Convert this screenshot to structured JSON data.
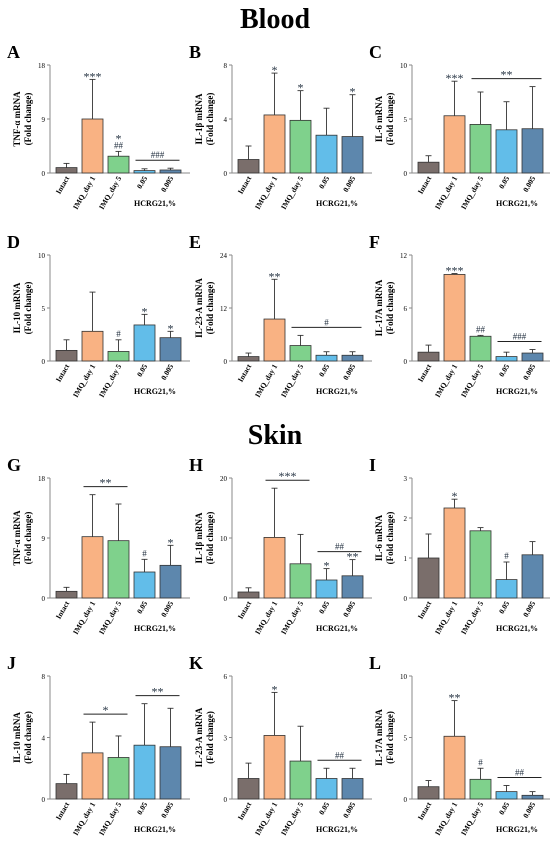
{
  "section_titles": [
    "Blood",
    "Skin"
  ],
  "chart_data": [
    {
      "panel": "A",
      "section": "Blood",
      "type": "bar",
      "ylabel": [
        "TNF-α mRNA",
        "(Fold change)"
      ],
      "categories": [
        "Intact",
        "IMQ_day 1",
        "IMQ_day 5",
        "0.05",
        "0.005"
      ],
      "group_label": "HCRG21,%",
      "yticks": [
        0,
        9,
        18
      ],
      "ylim": [
        0,
        18
      ],
      "values": [
        0.9,
        9.0,
        2.8,
        0.4,
        0.5
      ],
      "errors": [
        0.7,
        6.6,
        0.8,
        0.3,
        0.3
      ],
      "marks": [
        [],
        [
          "***"
        ],
        [
          "*",
          "##"
        ],
        [],
        []
      ],
      "brackets": [
        {
          "from": 3,
          "to": 4,
          "label": "###"
        }
      ]
    },
    {
      "panel": "B",
      "section": "Blood",
      "type": "bar",
      "ylabel": [
        "IL-1β mRNA",
        "(Fold change)"
      ],
      "categories": [
        "Intact",
        "IMQ_day 1",
        "IMQ_day 5",
        "0.05",
        "0.005"
      ],
      "group_label": "HCRG21,%",
      "yticks": [
        0,
        4,
        8
      ],
      "ylim": [
        0,
        8
      ],
      "values": [
        1.0,
        4.3,
        3.9,
        2.8,
        2.7
      ],
      "errors": [
        1.0,
        3.1,
        2.2,
        2.0,
        3.1
      ],
      "marks": [
        [],
        [
          "*"
        ],
        [
          "*"
        ],
        [],
        [
          "*"
        ]
      ],
      "brackets": []
    },
    {
      "panel": "C",
      "section": "Blood",
      "type": "bar",
      "ylabel": [
        "IL-6 mRNA",
        "(Fold change)"
      ],
      "categories": [
        "Intact",
        "IMQ_day 1",
        "IMQ_day 5",
        "0.05",
        "0.005"
      ],
      "group_label": "HCRG21,%",
      "yticks": [
        0,
        5,
        10
      ],
      "ylim": [
        0,
        10
      ],
      "values": [
        1.0,
        5.3,
        4.5,
        4.0,
        4.1
      ],
      "errors": [
        0.6,
        3.2,
        3.0,
        2.6,
        3.9
      ],
      "marks": [
        [],
        [
          "***"
        ],
        [],
        [],
        []
      ],
      "brackets": [
        {
          "from": 2,
          "to": 4,
          "label": "**"
        }
      ]
    },
    {
      "panel": "D",
      "section": "Blood",
      "type": "bar",
      "ylabel": [
        "IL-10 mRNA",
        "(Fold change)"
      ],
      "categories": [
        "Intact",
        "IMQ_day 1",
        "IMQ_day 5",
        "0.05",
        "0.005"
      ],
      "group_label": "HCRG21,%",
      "yticks": [
        0,
        5,
        10
      ],
      "ylim": [
        0,
        10
      ],
      "values": [
        1.0,
        2.8,
        0.9,
        3.4,
        2.2
      ],
      "errors": [
        1.0,
        3.7,
        1.1,
        1.0,
        0.6
      ],
      "marks": [
        [],
        [],
        [
          "#"
        ],
        [
          "*"
        ],
        [
          "*"
        ]
      ],
      "brackets": []
    },
    {
      "panel": "E",
      "section": "Blood",
      "type": "bar",
      "ylabel": [
        "IL-23-A mRNA",
        "(Fold change)"
      ],
      "categories": [
        "Intact",
        "IMQ_day 1",
        "IMQ_day 5",
        "0.05",
        "0.005"
      ],
      "group_label": "HCRG21,%",
      "yticks": [
        0,
        12,
        24
      ],
      "ylim": [
        0,
        24
      ],
      "values": [
        1.0,
        9.5,
        3.5,
        1.3,
        1.3
      ],
      "errors": [
        0.8,
        9.0,
        2.3,
        0.8,
        0.8
      ],
      "marks": [
        [],
        [
          "**"
        ],
        [],
        [],
        []
      ],
      "brackets": [
        {
          "from": 2,
          "to": 4,
          "label": "#"
        }
      ]
    },
    {
      "panel": "F",
      "section": "Blood",
      "type": "bar",
      "ylabel": [
        "IL-17A mRNA",
        "(Fold change)"
      ],
      "categories": [
        "Intact",
        "IMQ_day 1",
        "IMQ_day 5",
        "0.05",
        "0.005"
      ],
      "group_label": "HCRG21,%",
      "yticks": [
        0,
        6,
        12
      ],
      "ylim": [
        0,
        12
      ],
      "values": [
        1.0,
        9.8,
        2.8,
        0.5,
        0.9
      ],
      "errors": [
        0.8,
        0.1,
        0.1,
        0.5,
        0.4
      ],
      "marks": [
        [],
        [
          "***"
        ],
        [
          "##"
        ],
        [],
        []
      ],
      "brackets": [
        {
          "from": 3,
          "to": 4,
          "label": "###"
        }
      ]
    },
    {
      "panel": "G",
      "section": "Skin",
      "type": "bar",
      "ylabel": [
        "TNF-α mRNA",
        "(Fold change)"
      ],
      "categories": [
        "Intact",
        "IMQ_day 1",
        "IMQ_day 5",
        "0.05",
        "0.005"
      ],
      "group_label": "HCRG21,%",
      "yticks": [
        0,
        9,
        18
      ],
      "ylim": [
        0,
        18
      ],
      "values": [
        1.0,
        9.2,
        8.6,
        3.9,
        4.9
      ],
      "errors": [
        0.6,
        6.3,
        5.5,
        1.9,
        3.0
      ],
      "marks": [
        [],
        [],
        [],
        [
          "#"
        ],
        [
          "*"
        ]
      ],
      "brackets": [
        {
          "from": 1,
          "to": 2,
          "label": "**"
        }
      ]
    },
    {
      "panel": "H",
      "section": "Skin",
      "type": "bar",
      "ylabel": [
        "IL-1β mRNA",
        "(Fold change)"
      ],
      "categories": [
        "Intact",
        "IMQ_day 1",
        "IMQ_day 5",
        "0.05",
        "0.005"
      ],
      "group_label": "HCRG21,%",
      "yticks": [
        0,
        10,
        20
      ],
      "ylim": [
        0,
        20
      ],
      "values": [
        1.0,
        10.1,
        5.7,
        3.0,
        3.7
      ],
      "errors": [
        0.7,
        8.2,
        4.9,
        1.9,
        2.7
      ],
      "marks": [
        [],
        [],
        [],
        [
          "*"
        ],
        [
          "**"
        ]
      ],
      "brackets": [
        {
          "from": 1,
          "to": 2,
          "label": "***"
        },
        {
          "from": 3,
          "to": 4,
          "label": "##"
        }
      ]
    },
    {
      "panel": "I",
      "section": "Skin",
      "type": "bar",
      "ylabel": [
        "IL-6 mRNA",
        "(Fold change)"
      ],
      "categories": [
        "Intact",
        "IMQ_day 1",
        "IMQ_day 5",
        "0.05",
        "0.005"
      ],
      "group_label": "HCRG21,%",
      "yticks": [
        0,
        1,
        2,
        3
      ],
      "ylim": [
        0,
        3
      ],
      "values": [
        1.0,
        2.25,
        1.68,
        0.46,
        1.08
      ],
      "errors": [
        0.6,
        0.22,
        0.08,
        0.44,
        0.33
      ],
      "marks": [
        [],
        [
          "*"
        ],
        [],
        [
          "#"
        ],
        []
      ],
      "brackets": []
    },
    {
      "panel": "J",
      "section": "Skin",
      "type": "bar",
      "ylabel": [
        "IL-10 mRNA",
        "(Fold change)"
      ],
      "categories": [
        "Intact",
        "IMQ_day 1",
        "IMQ_day 5",
        "0.05",
        "0.005"
      ],
      "group_label": "HCRG21,%",
      "yticks": [
        0,
        4,
        8
      ],
      "ylim": [
        0,
        8
      ],
      "values": [
        1.0,
        3.0,
        2.7,
        3.5,
        3.4
      ],
      "errors": [
        0.6,
        2.0,
        1.4,
        2.7,
        2.5
      ],
      "marks": [
        [],
        [],
        [],
        [],
        []
      ],
      "brackets": [
        {
          "from": 1,
          "to": 2,
          "label": "*"
        },
        {
          "from": 3,
          "to": 4,
          "label": "**"
        }
      ]
    },
    {
      "panel": "K",
      "section": "Skin",
      "type": "bar",
      "ylabel": [
        "IL-23-A mRNA",
        "(Fold change)"
      ],
      "categories": [
        "Intact",
        "IMQ_day 1",
        "IMQ_day 5",
        "0.05",
        "0.005"
      ],
      "group_label": "HCRG21,%",
      "yticks": [
        0,
        3,
        6
      ],
      "ylim": [
        0,
        6
      ],
      "values": [
        1.0,
        3.1,
        1.85,
        1.0,
        1.0
      ],
      "errors": [
        0.75,
        2.1,
        1.7,
        0.5,
        0.5
      ],
      "marks": [
        [],
        [
          "*"
        ],
        [],
        [],
        []
      ],
      "brackets": [
        {
          "from": 3,
          "to": 4,
          "label": "##"
        }
      ]
    },
    {
      "panel": "L",
      "section": "Skin",
      "type": "bar",
      "ylabel": [
        "IL-17A mRNA",
        "(Fold change)"
      ],
      "categories": [
        "Intact",
        "IMQ_day 1",
        "IMQ_day 5",
        "0.05",
        "0.005"
      ],
      "group_label": "HCRG21,%",
      "yticks": [
        0,
        5,
        10
      ],
      "ylim": [
        0,
        10
      ],
      "values": [
        1.0,
        5.1,
        1.6,
        0.6,
        0.3
      ],
      "errors": [
        0.5,
        2.9,
        0.9,
        0.5,
        0.3
      ],
      "marks": [
        [],
        [
          "**"
        ],
        [
          "#"
        ],
        [],
        []
      ],
      "brackets": [
        {
          "from": 3,
          "to": 4,
          "label": "##"
        }
      ]
    }
  ],
  "bar_colors": [
    "#7a6e6b",
    "#f9b283",
    "#7fd18c",
    "#62bde9",
    "#5d87ad"
  ],
  "annotation_color": "#1f2d3d"
}
